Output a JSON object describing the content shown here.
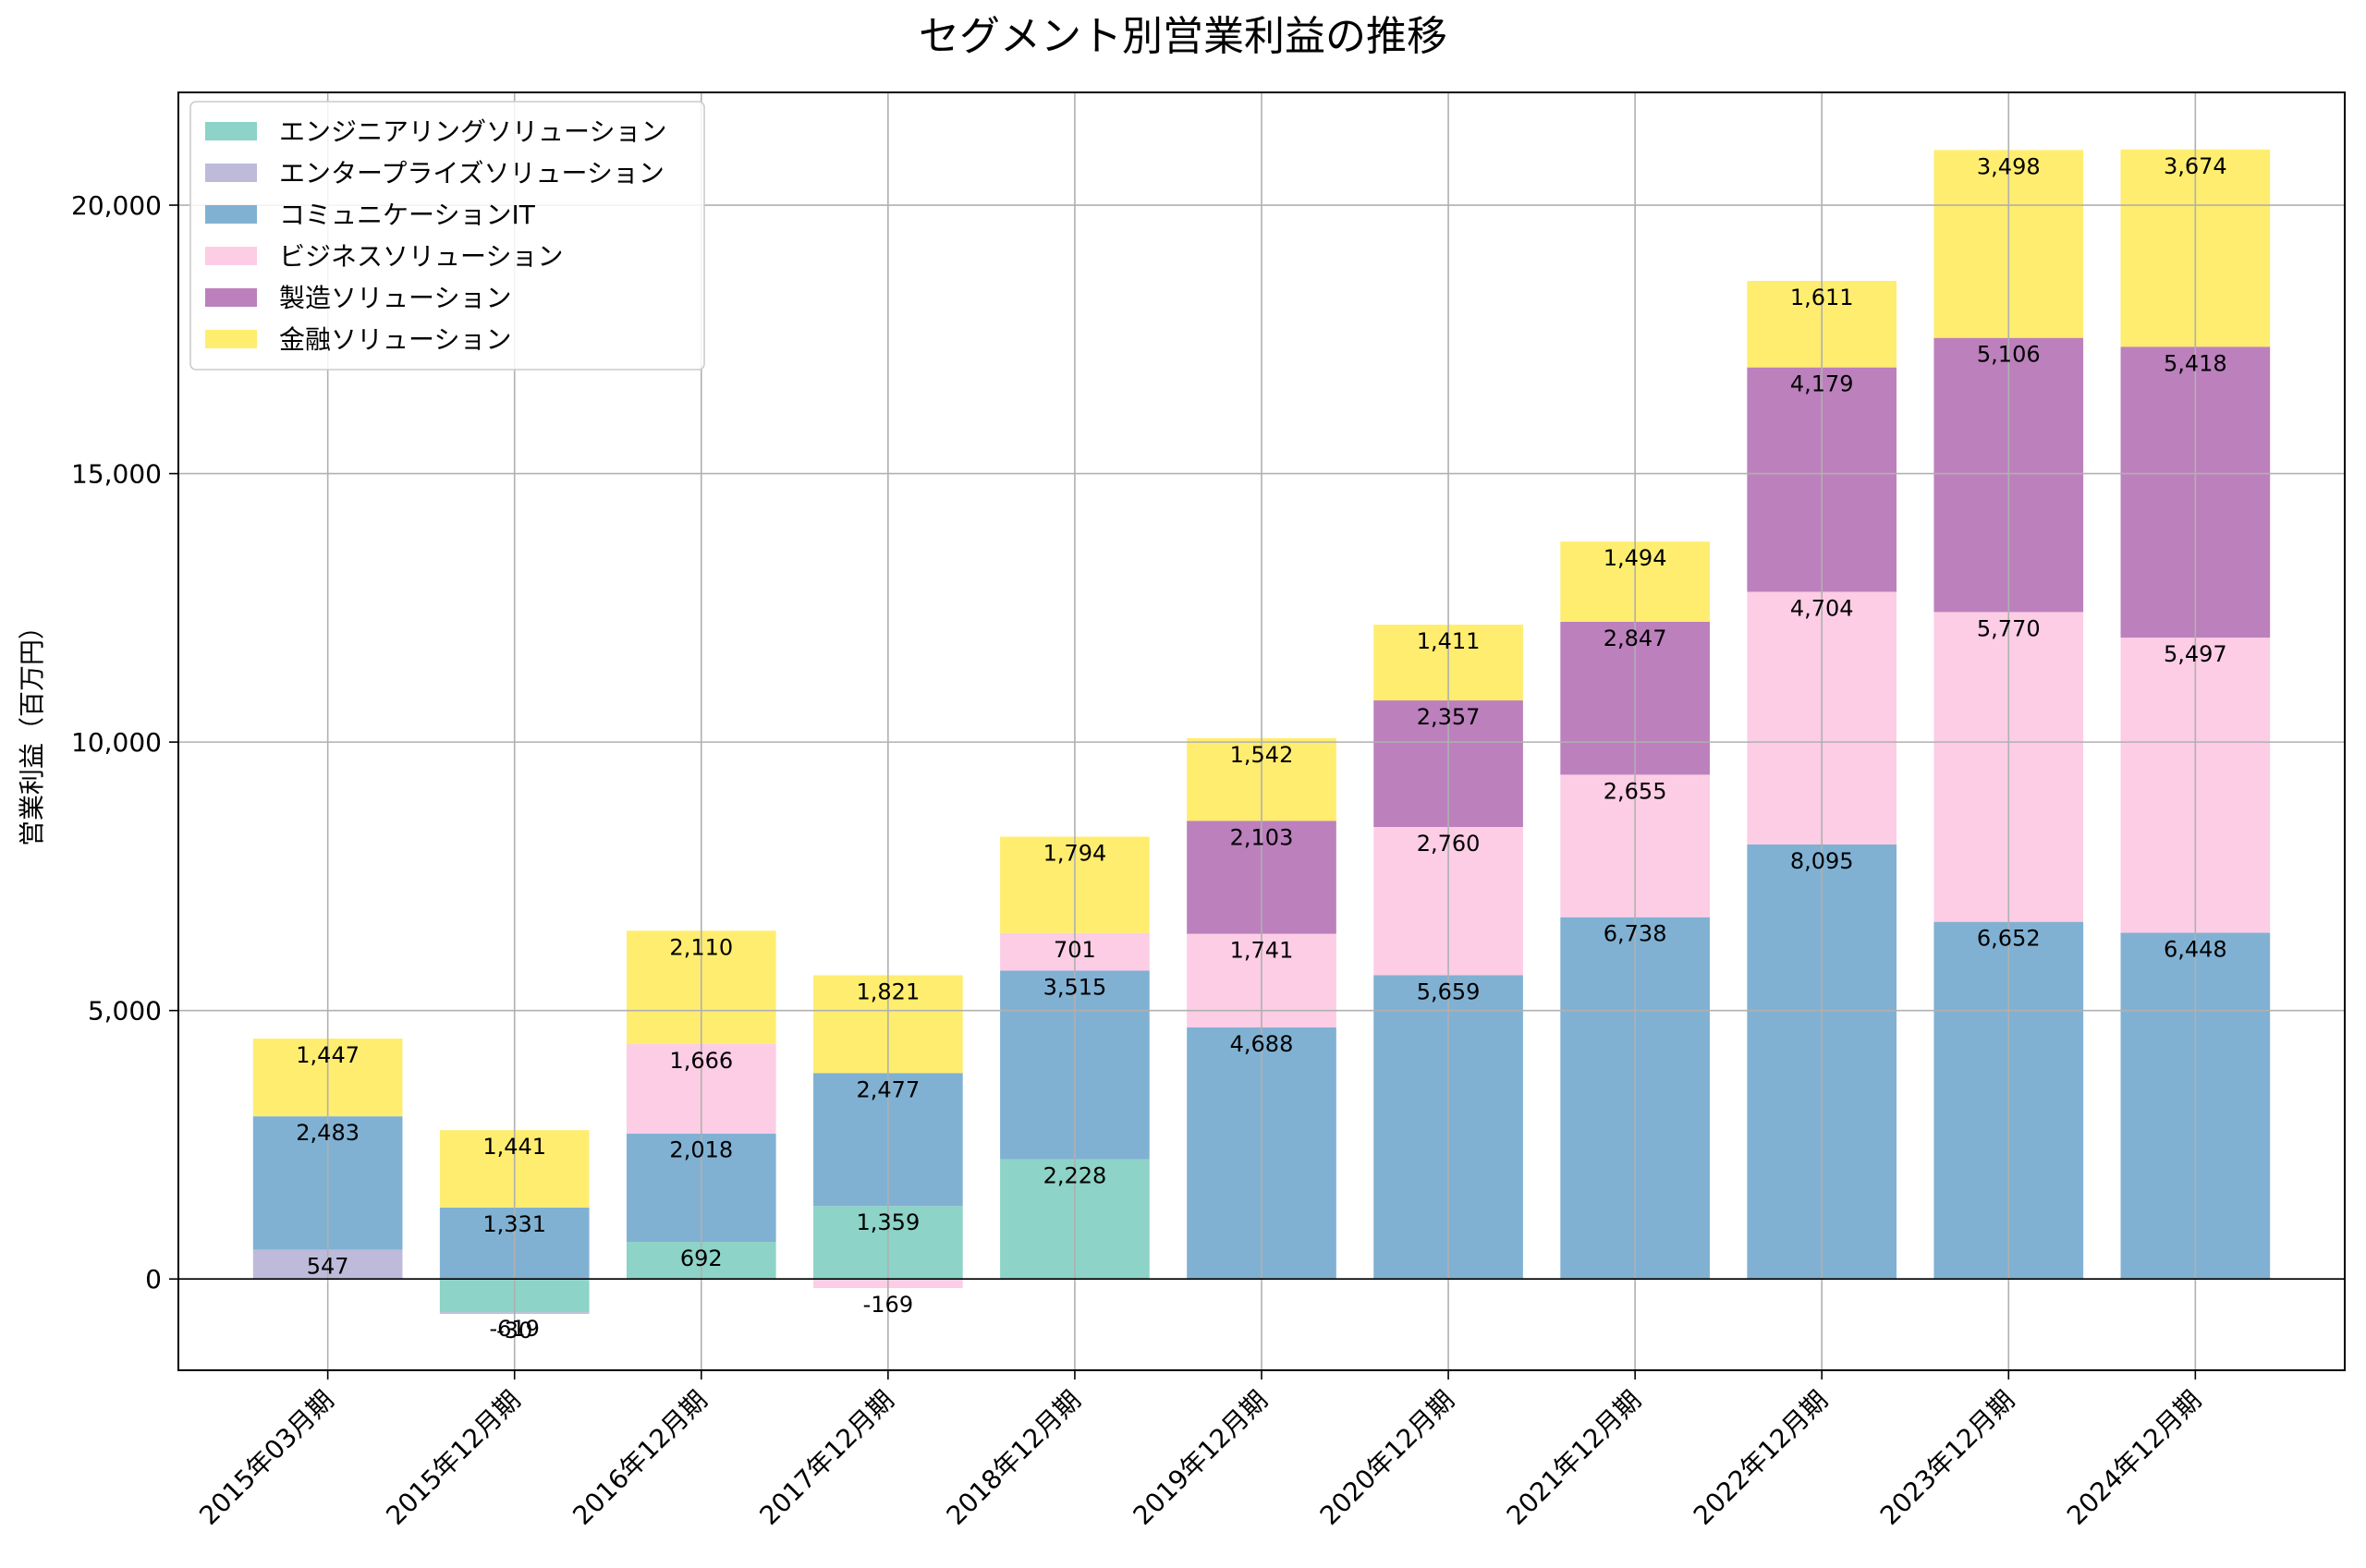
{
  "chart_data": {
    "type": "bar",
    "stacked": true,
    "title": "セグメント別営業利益の推移",
    "xlabel": "",
    "ylabel": "営業利益（百万円）",
    "ylim": [
      -1700,
      22100
    ],
    "yticks": [
      0,
      5000,
      10000,
      15000,
      20000
    ],
    "ytick_labels": [
      "0",
      "5,000",
      "10,000",
      "15,000",
      "20,000"
    ],
    "grid": true,
    "legend_position": "top-left",
    "categories": [
      "2015年03月期",
      "2015年12月期",
      "2016年12月期",
      "2017年12月期",
      "2018年12月期",
      "2019年12月期",
      "2020年12月期",
      "2021年12月期",
      "2022年12月期",
      "2023年12月期",
      "2024年12月期"
    ],
    "series": [
      {
        "name": "エンジニアリングソリューション",
        "color": "#8dd3c7",
        "values": [
          0,
          -619,
          692,
          1359,
          2228,
          0,
          0,
          0,
          0,
          0,
          0
        ]
      },
      {
        "name": "エンタープライズソリューション",
        "color": "#bebada",
        "values": [
          547,
          -30,
          0,
          0,
          0,
          0,
          0,
          0,
          0,
          0,
          0
        ]
      },
      {
        "name": "コミュニケーションIT",
        "color": "#80b1d3",
        "values": [
          2483,
          1331,
          2018,
          2477,
          3515,
          4688,
          5659,
          6738,
          8095,
          6652,
          6448
        ]
      },
      {
        "name": "ビジネスソリューション",
        "color": "#fccde5",
        "values": [
          0,
          0,
          1666,
          -169,
          701,
          1741,
          2760,
          2655,
          4704,
          5770,
          5497
        ]
      },
      {
        "name": "製造ソリューション",
        "color": "#bc80bd",
        "values": [
          0,
          0,
          0,
          0,
          0,
          2103,
          2357,
          2847,
          4179,
          5106,
          5418
        ]
      },
      {
        "name": "金融ソリューション",
        "color": "#ffed6f",
        "values": [
          1447,
          1441,
          2110,
          1821,
          1794,
          1542,
          1411,
          1494,
          1611,
          3498,
          3674
        ]
      }
    ],
    "data_labels": [
      [
        "",
        "-619",
        "692",
        "1,359",
        "2,228",
        "",
        "",
        "",
        "",
        "",
        ""
      ],
      [
        "547",
        "-30",
        "",
        "",
        "",
        "",
        "",
        "",
        "",
        "",
        ""
      ],
      [
        "2,483",
        "1,331",
        "2,018",
        "2,477",
        "3,515",
        "4,688",
        "5,659",
        "6,738",
        "8,095",
        "6,652",
        "6,448"
      ],
      [
        "",
        "",
        "1,666",
        "-169",
        "701",
        "1,741",
        "2,760",
        "2,655",
        "4,704",
        "5,770",
        "5,497"
      ],
      [
        "",
        "",
        "",
        "",
        "",
        "2,103",
        "2,357",
        "2,847",
        "4,179",
        "5,106",
        "5,418"
      ],
      [
        "1,447",
        "1,441",
        "2,110",
        "1,821",
        "1,794",
        "1,542",
        "1,411",
        "1,494",
        "1,611",
        "3,498",
        "3,674"
      ]
    ]
  }
}
